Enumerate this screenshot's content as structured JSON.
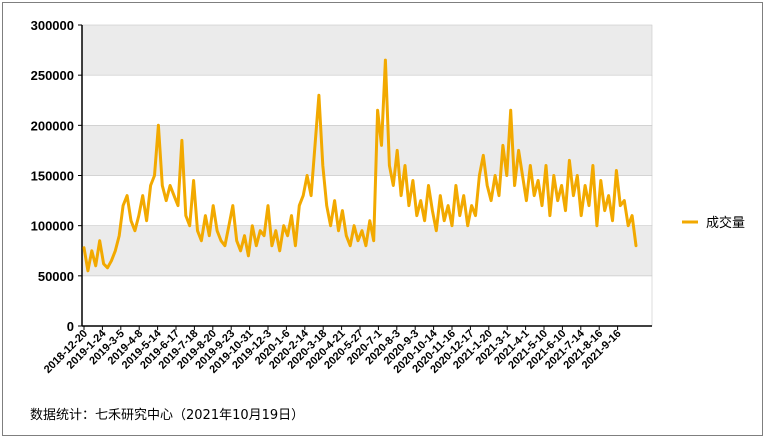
{
  "source_note": "数据统计：七禾研究中心（2021年10月19日）",
  "chart_data": {
    "type": "line",
    "title": "",
    "xlabel": "",
    "ylabel": "",
    "ylim": [
      0,
      300000
    ],
    "yticks": [
      "0",
      "50000",
      "100000",
      "150000",
      "200000",
      "250000",
      "300000"
    ],
    "xtick_labels": [
      "2018-12-20",
      "2019-1-24",
      "2019-3-5",
      "2019-4-8",
      "2019-5-14",
      "2019-6-17",
      "2019-7-18",
      "2019-8-20",
      "2019-9-23",
      "2019-10-31",
      "2019-12-3",
      "2020-1-6",
      "2020-2-14",
      "2020-3-18",
      "2020-4-21",
      "2020-5-27",
      "2020-7-1",
      "2020-8-3",
      "2020-9-3",
      "2020-10-14",
      "2020-11-16",
      "2020-12-17",
      "2021-1-20",
      "2021-3-1",
      "2021-4-1",
      "2021-5-10",
      "2021-6-10",
      "2021-7-14",
      "2021-8-16",
      "2021-9-16"
    ],
    "grid": "horizontal bands (alternating light gray)",
    "legend_position": "right",
    "colors": {
      "series": "#f2a900",
      "band": "#ebebeb",
      "axis": "#7f7f7f"
    },
    "series": [
      {
        "name": "成交量",
        "values": [
          78000,
          55000,
          75000,
          60000,
          85000,
          62000,
          58000,
          65000,
          75000,
          90000,
          120000,
          130000,
          105000,
          95000,
          110000,
          130000,
          105000,
          140000,
          150000,
          200000,
          140000,
          125000,
          140000,
          130000,
          120000,
          185000,
          110000,
          100000,
          145000,
          95000,
          85000,
          110000,
          90000,
          120000,
          95000,
          85000,
          80000,
          100000,
          120000,
          85000,
          75000,
          90000,
          70000,
          100000,
          80000,
          95000,
          90000,
          120000,
          80000,
          95000,
          75000,
          100000,
          90000,
          110000,
          80000,
          120000,
          130000,
          150000,
          130000,
          180000,
          230000,
          160000,
          120000,
          100000,
          125000,
          95000,
          115000,
          90000,
          80000,
          100000,
          85000,
          95000,
          80000,
          105000,
          85000,
          215000,
          180000,
          265000,
          160000,
          140000,
          175000,
          130000,
          160000,
          120000,
          145000,
          110000,
          125000,
          105000,
          140000,
          115000,
          95000,
          130000,
          105000,
          120000,
          100000,
          140000,
          110000,
          130000,
          100000,
          120000,
          110000,
          150000,
          170000,
          140000,
          125000,
          150000,
          130000,
          180000,
          150000,
          215000,
          140000,
          175000,
          150000,
          125000,
          160000,
          130000,
          145000,
          120000,
          160000,
          110000,
          150000,
          125000,
          140000,
          115000,
          165000,
          130000,
          150000,
          110000,
          140000,
          120000,
          160000,
          100000,
          145000,
          115000,
          130000,
          105000,
          155000,
          120000,
          125000,
          100000,
          110000,
          80000
        ]
      }
    ]
  }
}
